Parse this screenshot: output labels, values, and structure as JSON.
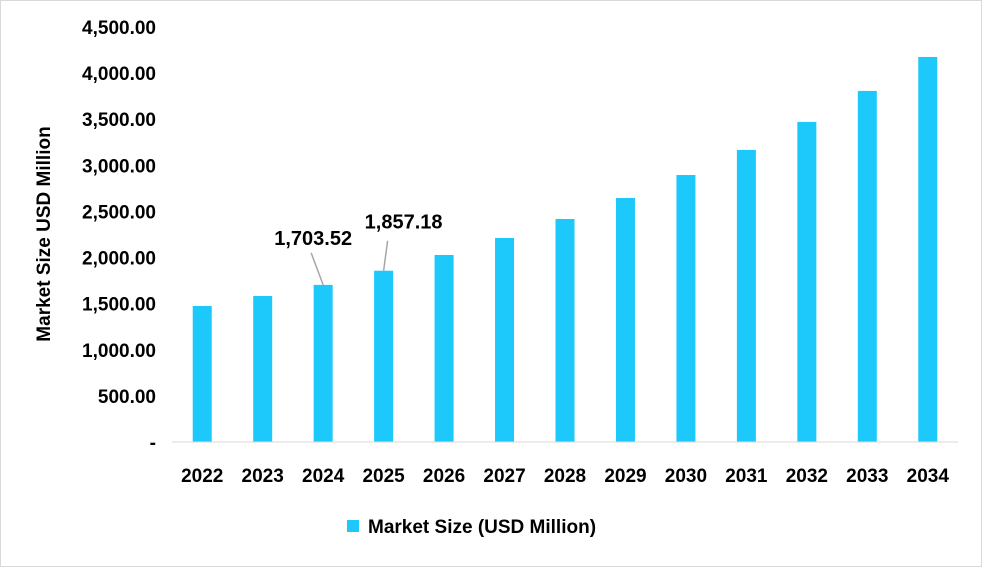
{
  "chart_data": {
    "type": "bar",
    "title": "",
    "xlabel": "",
    "ylabel": "Market Size USD Million",
    "ylim": [
      0,
      4500
    ],
    "yticks": [
      "-",
      "500.00",
      "1,000.00",
      "1,500.00",
      "2,000.00",
      "2,500.00",
      "3,000.00",
      "3,500.00",
      "4,000.00",
      "4,500.00"
    ],
    "grid": false,
    "legend_position": "bottom",
    "categories": [
      "2022",
      "2023",
      "2024",
      "2025",
      "2026",
      "2027",
      "2028",
      "2029",
      "2030",
      "2031",
      "2032",
      "2033",
      "2034"
    ],
    "series": [
      {
        "name": "Market Size (USD Million)",
        "color": "#1DC8FB",
        "values": [
          1475,
          1583,
          1703.52,
          1857.18,
          2028,
          2212,
          2418,
          2646,
          2895,
          3167,
          3471,
          3807,
          4175
        ]
      }
    ],
    "data_labels": [
      {
        "category": "2024",
        "text": "1,703.52"
      },
      {
        "category": "2025",
        "text": "1,857.18"
      }
    ]
  }
}
